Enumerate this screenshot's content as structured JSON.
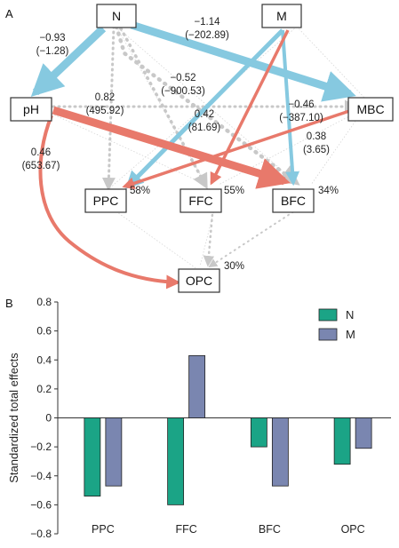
{
  "panel_a": {
    "letter": "A",
    "colors": {
      "positive": "#E8796B",
      "negative": "#86C9E0",
      "nonsig": "#C8C8C8"
    },
    "nodes": {
      "N": "N",
      "M": "M",
      "pH": "pH",
      "MBC": "MBC",
      "PPC": "PPC",
      "FFC": "FFC",
      "BFC": "BFC",
      "OPC": "OPC"
    },
    "r2": {
      "PPC": "58%",
      "FFC": "55%",
      "BFC": "34%",
      "OPC": "30%"
    },
    "coefficients": {
      "N_pH": {
        "value": "−0.93",
        "paren": "(−1.28)"
      },
      "N_MBC": {
        "value": "−1.14",
        "paren": "(−202.89)"
      },
      "N_PPC": {
        "value": "0.82",
        "paren": "(495.92)"
      },
      "N_FFC": {
        "value": "−0.52",
        "paren": "(−900.53)"
      },
      "M_PPC": {
        "value": "0.42",
        "paren": "(81.69)"
      },
      "pH_MBC": {
        "value": "−0.46",
        "paren": "(−387.10)"
      },
      "MBC_PPC": {
        "value": "0.38",
        "paren": "(3.65)"
      },
      "pH_OPC": {
        "value": "0.46",
        "paren": "(653.67)"
      }
    }
  },
  "panel_b": {
    "letter": "B",
    "chart_data": {
      "type": "bar",
      "categories": [
        "PPC",
        "FFC",
        "BFC",
        "OPC"
      ],
      "series": [
        {
          "name": "N",
          "color": "#1BA486",
          "values": [
            -0.54,
            -0.6,
            -0.2,
            -0.32
          ]
        },
        {
          "name": "M",
          "color": "#7A86B0",
          "values": [
            -0.47,
            0.43,
            -0.47,
            -0.21
          ]
        }
      ],
      "ylabel": "Standardized total effects",
      "ylim": [
        -0.8,
        0.8
      ],
      "yticks": [
        "0.8",
        "0.6",
        "0.4",
        "0.2",
        "0",
        "−0.2",
        "−0.4",
        "−0.6",
        "−0.8"
      ],
      "legend_position": "top-right",
      "grid": false
    }
  }
}
